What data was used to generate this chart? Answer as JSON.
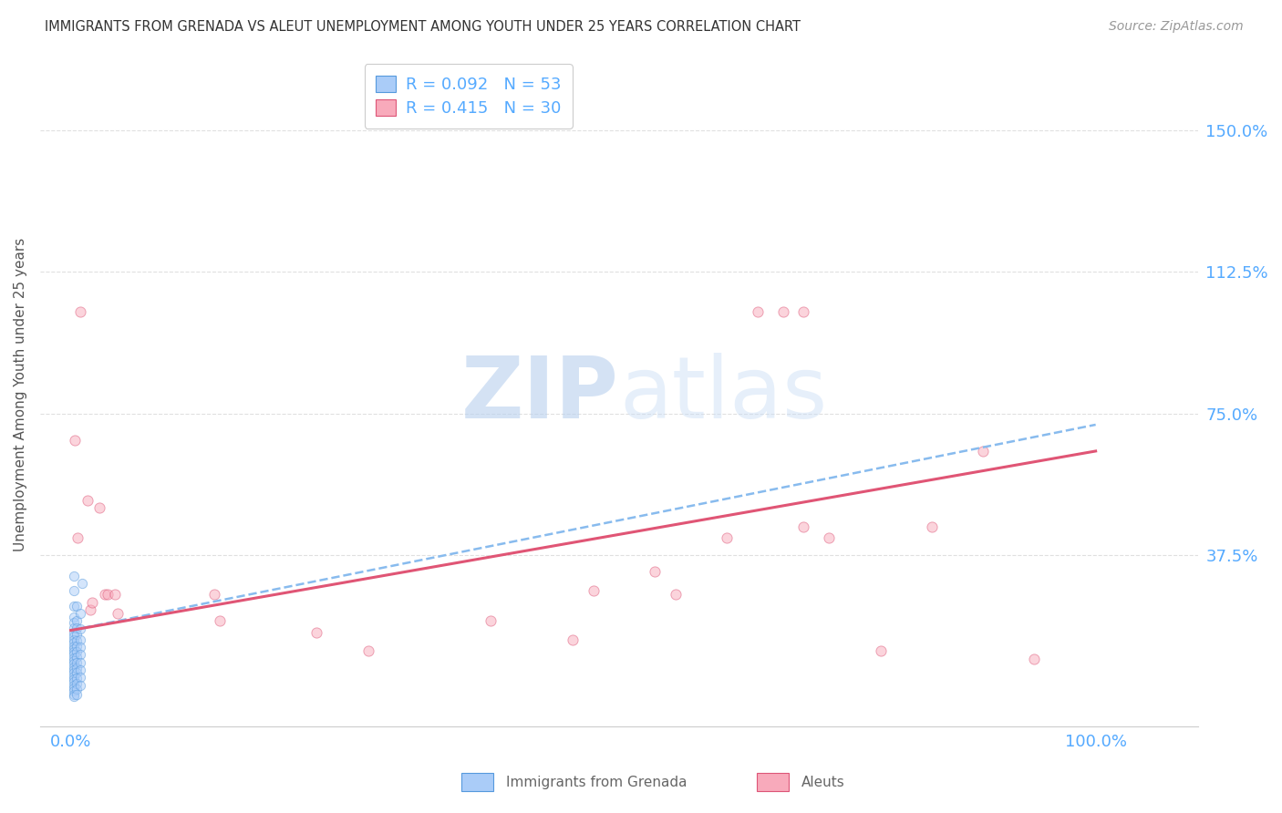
{
  "title": "IMMIGRANTS FROM GRENADA VS ALEUT UNEMPLOYMENT AMONG YOUTH UNDER 25 YEARS CORRELATION CHART",
  "source": "Source: ZipAtlas.com",
  "ylabel": "Unemployment Among Youth under 25 years",
  "x_tick_labels": [
    "0.0%",
    "100.0%"
  ],
  "x_tick_values": [
    0.0,
    1.0
  ],
  "y_tick_labels": [
    "150.0%",
    "112.5%",
    "75.0%",
    "37.5%"
  ],
  "y_tick_values": [
    1.5,
    1.125,
    0.75,
    0.375
  ],
  "xlim": [
    -0.03,
    1.1
  ],
  "ylim": [
    -0.08,
    1.68
  ],
  "legend_series1": "R = 0.092   N = 53",
  "legend_series2": "R = 0.415   N = 30",
  "color_blue_face": "#aaccf8",
  "color_blue_edge": "#5599dd",
  "color_pink_face": "#f8aabb",
  "color_pink_edge": "#dd5577",
  "blue_points": [
    [
      0.003,
      0.32
    ],
    [
      0.003,
      0.28
    ],
    [
      0.003,
      0.24
    ],
    [
      0.003,
      0.21
    ],
    [
      0.003,
      0.195
    ],
    [
      0.003,
      0.182
    ],
    [
      0.003,
      0.17
    ],
    [
      0.003,
      0.16
    ],
    [
      0.003,
      0.15
    ],
    [
      0.003,
      0.142
    ],
    [
      0.003,
      0.134
    ],
    [
      0.003,
      0.126
    ],
    [
      0.003,
      0.118
    ],
    [
      0.003,
      0.11
    ],
    [
      0.003,
      0.102
    ],
    [
      0.003,
      0.094
    ],
    [
      0.003,
      0.086
    ],
    [
      0.003,
      0.078
    ],
    [
      0.003,
      0.07
    ],
    [
      0.003,
      0.062
    ],
    [
      0.003,
      0.054
    ],
    [
      0.003,
      0.046
    ],
    [
      0.003,
      0.038
    ],
    [
      0.003,
      0.03
    ],
    [
      0.003,
      0.022
    ],
    [
      0.003,
      0.014
    ],
    [
      0.003,
      0.006
    ],
    [
      0.003,
      0.0
    ],
    [
      0.006,
      0.24
    ],
    [
      0.006,
      0.2
    ],
    [
      0.006,
      0.182
    ],
    [
      0.006,
      0.165
    ],
    [
      0.006,
      0.148
    ],
    [
      0.006,
      0.132
    ],
    [
      0.006,
      0.118
    ],
    [
      0.006,
      0.104
    ],
    [
      0.006,
      0.09
    ],
    [
      0.006,
      0.076
    ],
    [
      0.006,
      0.062
    ],
    [
      0.006,
      0.048
    ],
    [
      0.006,
      0.034
    ],
    [
      0.006,
      0.02
    ],
    [
      0.006,
      0.006
    ],
    [
      0.009,
      0.22
    ],
    [
      0.009,
      0.18
    ],
    [
      0.009,
      0.15
    ],
    [
      0.009,
      0.13
    ],
    [
      0.009,
      0.11
    ],
    [
      0.009,
      0.09
    ],
    [
      0.009,
      0.07
    ],
    [
      0.009,
      0.05
    ],
    [
      0.009,
      0.03
    ],
    [
      0.011,
      0.3
    ]
  ],
  "pink_points": [
    [
      0.004,
      0.68
    ],
    [
      0.007,
      0.42
    ],
    [
      0.009,
      1.02
    ],
    [
      0.016,
      0.52
    ],
    [
      0.019,
      0.23
    ],
    [
      0.021,
      0.25
    ],
    [
      0.028,
      0.5
    ],
    [
      0.033,
      0.27
    ],
    [
      0.036,
      0.27
    ],
    [
      0.043,
      0.27
    ],
    [
      0.046,
      0.22
    ],
    [
      0.14,
      0.27
    ],
    [
      0.145,
      0.2
    ],
    [
      0.24,
      0.17
    ],
    [
      0.29,
      0.12
    ],
    [
      0.41,
      0.2
    ],
    [
      0.49,
      0.15
    ],
    [
      0.51,
      0.28
    ],
    [
      0.57,
      0.33
    ],
    [
      0.59,
      0.27
    ],
    [
      0.64,
      0.42
    ],
    [
      0.67,
      1.02
    ],
    [
      0.695,
      1.02
    ],
    [
      0.715,
      1.02
    ],
    [
      0.715,
      0.45
    ],
    [
      0.74,
      0.42
    ],
    [
      0.79,
      0.12
    ],
    [
      0.84,
      0.45
    ],
    [
      0.89,
      0.65
    ],
    [
      0.94,
      0.1
    ]
  ],
  "blue_line_x": [
    0.0,
    1.0
  ],
  "blue_line_y": [
    0.175,
    0.72
  ],
  "pink_line_x": [
    0.0,
    1.0
  ],
  "pink_line_y": [
    0.175,
    0.65
  ],
  "watermark_zip": "ZIP",
  "watermark_atlas": "atlas",
  "background_color": "#ffffff",
  "grid_color": "#e0e0e0",
  "title_color": "#333333",
  "tick_color": "#55aaff",
  "ylabel_color": "#555555",
  "marker_size_blue": 55,
  "marker_size_pink": 65,
  "marker_alpha": 0.5
}
